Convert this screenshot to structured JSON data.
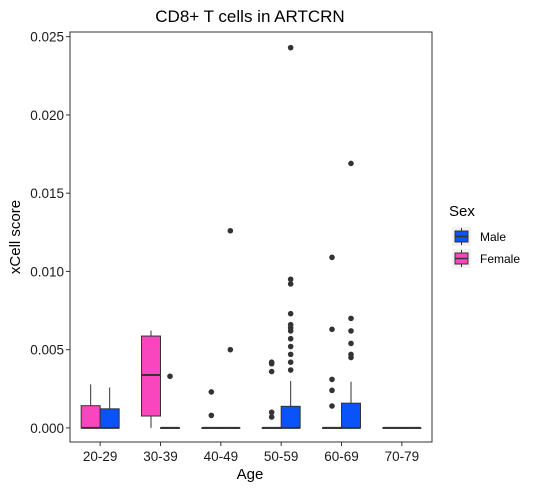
{
  "chart_data": {
    "type": "boxplot",
    "title": "CD8+ T cells in ARTCRN",
    "xlabel": "Age",
    "ylabel": "xCell score",
    "categories": [
      "20-29",
      "30-39",
      "40-49",
      "50-59",
      "60-69",
      "70-79"
    ],
    "ylim": [
      -0.0009,
      0.0253
    ],
    "yticks": [
      0.0,
      0.005,
      0.01,
      0.015,
      0.02,
      0.025
    ],
    "ytick_labels": [
      "0.000",
      "0.005",
      "0.010",
      "0.015",
      "0.020",
      "0.025"
    ],
    "grid": false,
    "legend": {
      "title": "Sex",
      "position": "right",
      "entries": [
        {
          "name": "Male",
          "color": "#0a52fa"
        },
        {
          "name": "Female",
          "color": "#fa46be"
        }
      ]
    },
    "series": [
      {
        "name": "Female",
        "color": "#fa46be",
        "boxes": [
          {
            "category": "20-29",
            "min": 0,
            "q1": 0,
            "median": 0,
            "q3": 0.00142,
            "max": 0.00278,
            "outliers": []
          },
          {
            "category": "30-39",
            "min": 0,
            "q1": 0.00076,
            "median": 0.00338,
            "q3": 0.00587,
            "max": 0.00622,
            "outliers": []
          },
          {
            "category": "40-49",
            "min": 0,
            "q1": 0,
            "median": 0,
            "q3": 0,
            "max": 0,
            "outliers": [
              0.0008,
              0.0023
            ]
          },
          {
            "category": "50-59",
            "min": 0,
            "q1": 0,
            "median": 0,
            "q3": 0,
            "max": 0,
            "outliers": [
              0.0007,
              0.001,
              0.0036,
              0.0041,
              0.0042
            ]
          },
          {
            "category": "60-69",
            "min": 0,
            "q1": 0,
            "median": 0,
            "q3": 0,
            "max": 0,
            "outliers": [
              0.0014,
              0.0024,
              0.0031,
              0.0063,
              0.0109
            ]
          },
          {
            "category": "70-79",
            "min": 0,
            "q1": 0,
            "median": 0,
            "q3": 0,
            "max": 0,
            "outliers": []
          }
        ]
      },
      {
        "name": "Male",
        "color": "#0a52fa",
        "boxes": [
          {
            "category": "20-29",
            "min": 0,
            "q1": 0,
            "median": 0,
            "q3": 0.00122,
            "max": 0.00258,
            "outliers": []
          },
          {
            "category": "30-39",
            "min": 0,
            "q1": 0,
            "median": 0,
            "q3": 0,
            "max": 0,
            "outliers": [
              0.0033
            ]
          },
          {
            "category": "40-49",
            "min": 0,
            "q1": 0,
            "median": 0,
            "q3": 0,
            "max": 0,
            "outliers": [
              0.005,
              0.0126
            ]
          },
          {
            "category": "50-59",
            "min": 0,
            "q1": 0,
            "median": 0,
            "q3": 0.00138,
            "max": 0.003,
            "outliers": [
              0.0037,
              0.0042,
              0.0047,
              0.0052,
              0.0057,
              0.0062,
              0.0064,
              0.0066,
              0.0073,
              0.0092,
              0.0095,
              0.0243
            ]
          },
          {
            "category": "60-69",
            "min": 0,
            "q1": 0,
            "median": 0,
            "q3": 0.00158,
            "max": 0.00295,
            "outliers": [
              0.0045,
              0.0047,
              0.0054,
              0.0062,
              0.007,
              0.0169
            ]
          },
          {
            "category": "70-79",
            "min": 0,
            "q1": 0,
            "median": 0,
            "q3": 0,
            "max": 0,
            "outliers": []
          }
        ]
      }
    ]
  }
}
